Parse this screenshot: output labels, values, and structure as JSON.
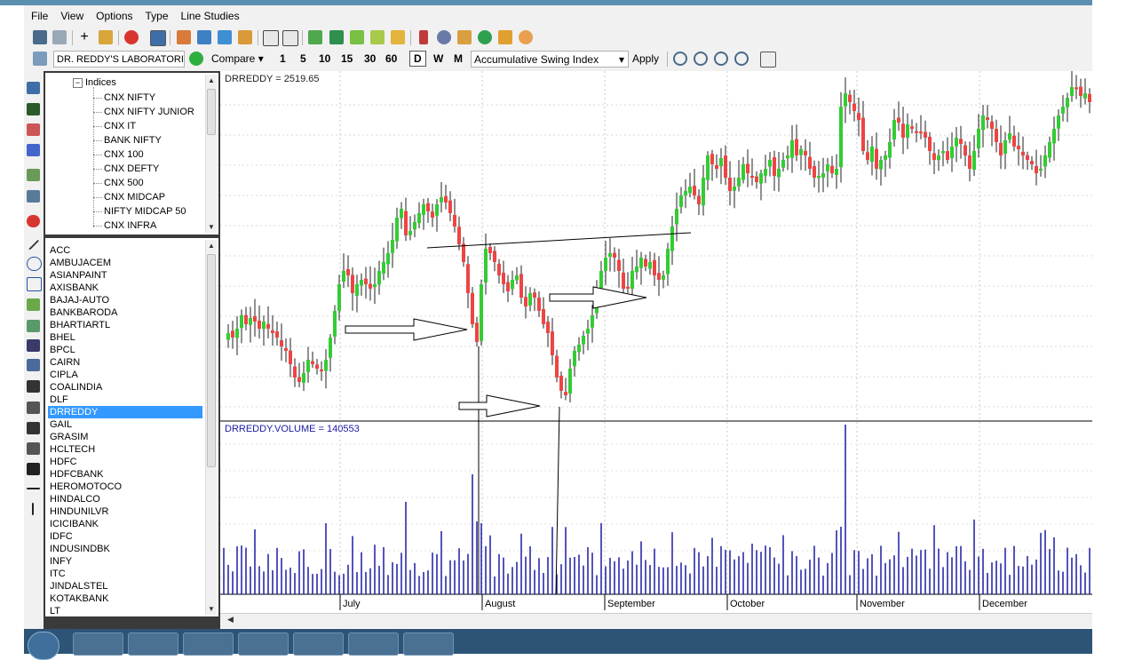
{
  "menu": [
    "File",
    "View",
    "Options",
    "Type",
    "Line Studies"
  ],
  "toolbar2": {
    "symbol": "DR. REDDY'S LABORATORIE",
    "compare": "Compare",
    "intervals": [
      "1",
      "5",
      "10",
      "15",
      "30",
      "60"
    ],
    "periods": [
      "D",
      "W",
      "M"
    ],
    "selected_period": "D",
    "study": "Accumulative Swing Index",
    "apply": "Apply"
  },
  "tree": {
    "root": "Indices",
    "items": [
      "CNX NIFTY",
      "CNX NIFTY JUNIOR",
      "CNX IT",
      "BANK NIFTY",
      "CNX 100",
      "CNX DEFTY",
      "CNX 500",
      "CNX MIDCAP",
      "NIFTY MIDCAP 50",
      "CNX INFRA"
    ]
  },
  "symbols": [
    "ACC",
    "AMBUJACEM",
    "ASIANPAINT",
    "AXISBANK",
    "BAJAJ-AUTO",
    "BANKBARODA",
    "BHARTIARTL",
    "BHEL",
    "BPCL",
    "CAIRN",
    "CIPLA",
    "COALINDIA",
    "DLF",
    "DRREDDY",
    "GAIL",
    "GRASIM",
    "HCLTECH",
    "HDFC",
    "HDFCBANK",
    "HEROMOTOCO",
    "HINDALCO",
    "HINDUNILVR",
    "ICICIBANK",
    "IDFC",
    "INDUSINDBK",
    "INFY",
    "ITC",
    "JINDALSTEL",
    "KOTAKBANK",
    "LT"
  ],
  "selected_symbol": "DRREDDY",
  "chart": {
    "price_label": "DRREDDY = 2519.65",
    "volume_label": "DRREDDY.VOLUME = 140553",
    "months": [
      "July",
      "August",
      "September",
      "October",
      "November",
      "December"
    ]
  },
  "colors": {
    "up": "#33cc33",
    "down": "#ee4444",
    "volume": "#1a1aa6",
    "selection": "#3399ff"
  },
  "chart_data": {
    "type": "candlestick",
    "symbol": "DRREDDY",
    "last_close": 2519.65,
    "last_volume": 140553,
    "x_categories": [
      "July",
      "August",
      "September",
      "October",
      "November",
      "December"
    ],
    "legend": "top-left",
    "grid": true,
    "annotations": [
      "trendline",
      "arrow",
      "arrow",
      "arrow",
      "arrow"
    ]
  }
}
